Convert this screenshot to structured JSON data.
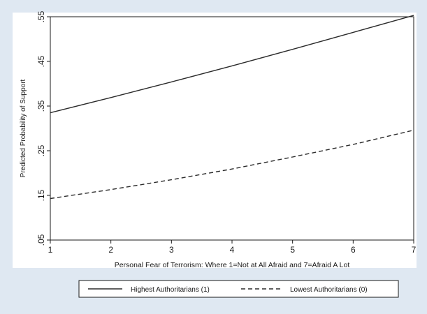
{
  "chart_data": {
    "type": "line",
    "title": "",
    "xlabel": "Personal Fear of Terrorism: Where 1=Not at All Afraid and 7=Afraid A Lot",
    "ylabel": "Predicted Probability of Support",
    "xlim": [
      1,
      7
    ],
    "ylim": [
      0.05,
      0.55
    ],
    "x_ticks": [
      1,
      2,
      3,
      4,
      5,
      6,
      7
    ],
    "x_tick_labels": [
      "1",
      "2",
      "3",
      "4",
      "5",
      "6",
      "7"
    ],
    "y_ticks": [
      0.05,
      0.15,
      0.25,
      0.35,
      0.45,
      0.55
    ],
    "y_tick_labels": [
      ".05",
      ".15",
      ".25",
      ".35",
      ".45",
      ".55"
    ],
    "grid": false,
    "legend_position": "bottom",
    "x": [
      1,
      2,
      3,
      4,
      5,
      6,
      7
    ],
    "series": [
      {
        "name": "Highest Authoritarians (1)",
        "line_style": "solid",
        "color": "#2b2b2b",
        "values": [
          0.335,
          0.369,
          0.404,
          0.44,
          0.477,
          0.515,
          0.553
        ]
      },
      {
        "name": "Lowest Authoritarians (0)",
        "line_style": "dashed",
        "color": "#2b2b2b",
        "values": [
          0.143,
          0.163,
          0.185,
          0.209,
          0.236,
          0.264,
          0.296
        ]
      }
    ]
  },
  "colors": {
    "page_background": "#dfe8f2",
    "plot_background": "#ffffff",
    "axis": "#1a1a1a"
  }
}
